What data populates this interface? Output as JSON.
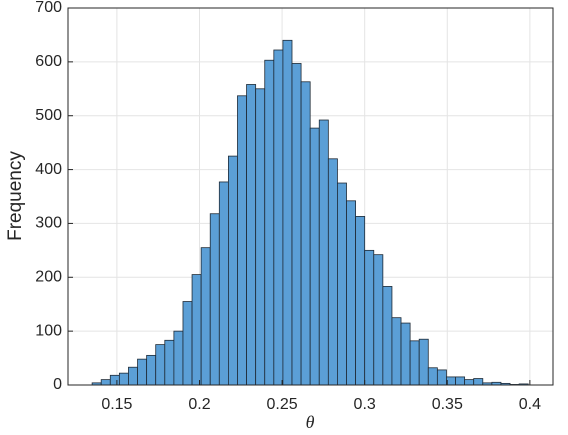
{
  "chart_data": {
    "type": "histogram",
    "x_label": "θ",
    "y_label": "Frequency",
    "bins": [
      0.135,
      0.1405,
      0.146,
      0.1515,
      0.157,
      0.1625,
      0.168,
      0.1735,
      0.179,
      0.1845,
      0.19,
      0.1955,
      0.201,
      0.2065,
      0.212,
      0.2175,
      0.223,
      0.2285,
      0.234,
      0.2395,
      0.245,
      0.2505,
      0.256,
      0.2615,
      0.267,
      0.2725,
      0.278,
      0.2835,
      0.289,
      0.2945,
      0.3,
      0.3055,
      0.311,
      0.3165,
      0.322,
      0.3275,
      0.333,
      0.3385,
      0.344,
      0.3495,
      0.355,
      0.3605,
      0.366,
      0.3715,
      0.377,
      0.3825,
      0.388,
      0.3935,
      0.399
    ],
    "values": [
      4,
      10,
      18,
      22,
      33,
      48,
      55,
      75,
      83,
      100,
      155,
      205,
      255,
      318,
      377,
      425,
      537,
      558,
      550,
      603,
      622,
      640,
      597,
      563,
      477,
      492,
      420,
      375,
      342,
      313,
      250,
      242,
      183,
      125,
      115,
      82,
      85,
      32,
      28,
      15,
      15,
      10,
      12,
      4,
      5,
      3,
      1,
      2
    ],
    "color": "#5b9fd6",
    "edge_color": "#1e2a36",
    "xlim": [
      0.1204,
      0.414
    ],
    "xticks": [
      0.15,
      0.2,
      0.25,
      0.3,
      0.35,
      0.4
    ],
    "ylim": [
      0,
      700
    ],
    "yticks": [
      0,
      100,
      200,
      300,
      400,
      500,
      600,
      700
    ],
    "grid": true
  }
}
